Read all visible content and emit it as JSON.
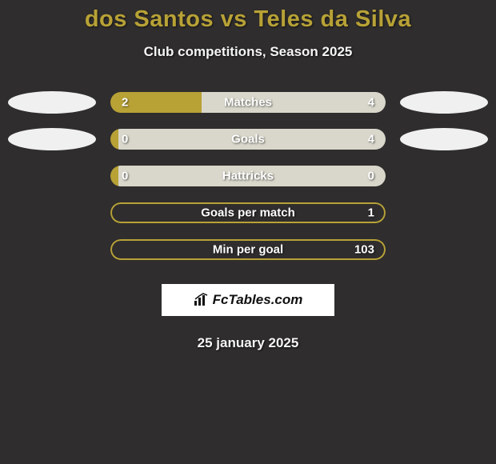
{
  "background_color": "#2f2d2d",
  "title": "dos Santos vs Teles da Silva",
  "title_color": "#b8a236",
  "title_fontsize": 29,
  "subtitle": "Club competitions, Season 2025",
  "subtitle_color": "#f5f5f5",
  "subtitle_fontsize": 17,
  "bar_left_color": "#b8a236",
  "bar_right_color": "#d9d7cb",
  "bar_border_color": "#b8a236",
  "ellipse_color": "#f0f0f0",
  "text_on_bar_color": "#ffffff",
  "stats": [
    {
      "label": "Matches",
      "left_val": "2",
      "right_val": "4",
      "left_pct": 33,
      "show_ellipse": true,
      "bordered": false
    },
    {
      "label": "Goals",
      "left_val": "0",
      "right_val": "4",
      "left_pct": 3,
      "show_ellipse": true,
      "bordered": false
    },
    {
      "label": "Hattricks",
      "left_val": "0",
      "right_val": "0",
      "left_pct": 3,
      "show_ellipse": false,
      "bordered": false
    },
    {
      "label": "Goals per match",
      "left_val": "",
      "right_val": "1",
      "left_pct": 0,
      "show_ellipse": false,
      "bordered": true
    },
    {
      "label": "Min per goal",
      "left_val": "",
      "right_val": "103",
      "left_pct": 0,
      "show_ellipse": false,
      "bordered": true
    }
  ],
  "logo_text": "FcTables.com",
  "logo_bg": "#ffffff",
  "date": "25 january 2025",
  "date_color": "#f5f5f5"
}
